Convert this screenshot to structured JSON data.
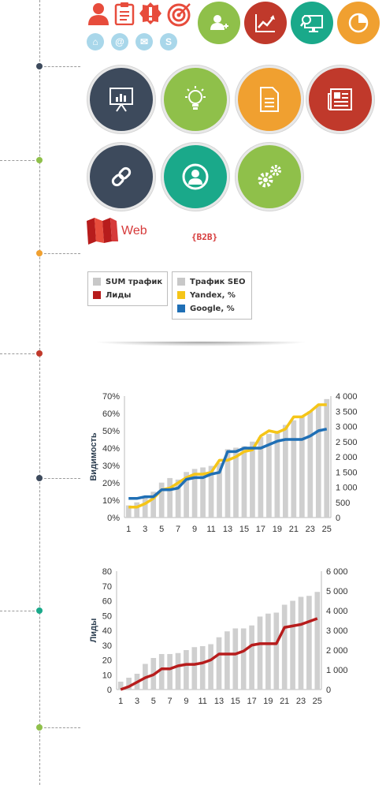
{
  "timeline": {
    "dot_colors": [
      "#3d4a5c",
      "#8fc04a",
      "#f0a030",
      "#c0392b",
      "#3d4a5c",
      "#1aa98a",
      "#8fc04a"
    ]
  },
  "top_icons": {
    "small": [
      "user-icon",
      "clipboard-icon",
      "alert-badge-icon",
      "target-icon"
    ],
    "pale": [
      "home-icon",
      "at-icon",
      "mail-icon",
      "skype-icon"
    ],
    "pale_glyphs": [
      "⌂",
      "@",
      "✉",
      "S"
    ],
    "circles": [
      {
        "name": "add-user-icon",
        "color": "#8fc04a"
      },
      {
        "name": "growth-chart-icon",
        "color": "#c0392b"
      },
      {
        "name": "monitor-search-icon",
        "color": "#1aa98a"
      },
      {
        "name": "pie-chart-icon",
        "color": "#f0a030"
      }
    ]
  },
  "big_circles": [
    {
      "name": "presentation-icon",
      "color": "#3d4a5c"
    },
    {
      "name": "lightbulb-icon",
      "color": "#8fc04a"
    },
    {
      "name": "document-icon",
      "color": "#f0a030"
    },
    {
      "name": "newspaper-icon",
      "color": "#c0392b"
    },
    {
      "name": "link-icon",
      "color": "#3d4a5c"
    },
    {
      "name": "user-profile-icon",
      "color": "#1aa98a"
    },
    {
      "name": "gears-icon",
      "color": "#8fc04a"
    }
  ],
  "brand": {
    "label": "Web",
    "tag": "{B2B}"
  },
  "legend_left": [
    {
      "label": "SUM трафик",
      "color": "#c8c8c8"
    },
    {
      "label": "Лиды",
      "color": "#b71c1c"
    }
  ],
  "legend_right": [
    {
      "label": "Трафик SEO",
      "color": "#c8c8c8"
    },
    {
      "label": "Yandex, %",
      "color": "#f5c518"
    },
    {
      "label": "Google, %",
      "color": "#1f6fb5"
    }
  ],
  "chart_data": [
    {
      "type": "bar+line",
      "ylabel": "Видимость",
      "categories": [
        1,
        2,
        3,
        4,
        5,
        6,
        7,
        8,
        9,
        10,
        11,
        12,
        13,
        14,
        15,
        16,
        17,
        18,
        19,
        20,
        21,
        22,
        23,
        24,
        25
      ],
      "x_tick_labels": [
        "1",
        "3",
        "5",
        "7",
        "9",
        "11",
        "13",
        "15",
        "17",
        "19",
        "21",
        "23",
        "25"
      ],
      "y_left_ticks": [
        "0%",
        "10%",
        "20%",
        "30%",
        "40%",
        "50%",
        "60%",
        "70%"
      ],
      "y_right_ticks": [
        "0",
        "500",
        "1 000",
        "1 500",
        "2 000",
        "2 500",
        "3 000",
        "3 500",
        "4 000"
      ],
      "ylim_left": [
        0,
        70
      ],
      "ylim_right": [
        0,
        4000
      ],
      "series": [
        {
          "name": "Трафик SEO",
          "kind": "bar",
          "axis": "right",
          "color": "#cfcfcf",
          "values": [
            400,
            500,
            700,
            850,
            1150,
            1300,
            1250,
            1500,
            1600,
            1650,
            1700,
            1800,
            2250,
            2300,
            2350,
            2500,
            2650,
            2750,
            2850,
            3050,
            3200,
            3350,
            3500,
            3700,
            3900
          ]
        },
        {
          "name": "Yandex, %",
          "kind": "line",
          "axis": "left",
          "color": "#f5c518",
          "values": [
            6,
            6,
            8,
            11,
            16,
            17,
            20,
            23,
            25,
            25,
            26,
            33,
            33,
            35,
            38,
            39,
            47,
            50,
            49,
            51,
            58,
            58,
            61,
            65,
            65
          ]
        },
        {
          "name": "Google, %",
          "kind": "line",
          "axis": "left",
          "color": "#1f6fb5",
          "values": [
            11,
            11,
            12,
            12,
            16,
            16,
            17,
            22,
            23,
            23,
            25,
            26,
            38,
            38,
            40,
            40,
            40,
            42,
            44,
            45,
            45,
            45,
            47,
            50,
            51
          ]
        }
      ]
    },
    {
      "type": "bar+line",
      "ylabel": "Лиды",
      "categories": [
        1,
        2,
        3,
        4,
        5,
        6,
        7,
        8,
        9,
        10,
        11,
        12,
        13,
        14,
        15,
        16,
        17,
        18,
        19,
        20,
        21,
        22,
        23,
        24,
        25
      ],
      "x_tick_labels": [
        "1",
        "3",
        "5",
        "7",
        "9",
        "11",
        "13",
        "15",
        "17",
        "19",
        "21",
        "23",
        "25"
      ],
      "y_left_ticks": [
        "0",
        "10",
        "20",
        "30",
        "40",
        "50",
        "60",
        "70",
        "80"
      ],
      "y_right_ticks": [
        "0",
        "1 000",
        "2 000",
        "3 000",
        "4 000",
        "5 000",
        "6 000"
      ],
      "ylim_left": [
        0,
        80
      ],
      "ylim_right": [
        0,
        6000
      ],
      "series": [
        {
          "name": "SUM трафик",
          "kind": "bar",
          "axis": "right",
          "color": "#cfcfcf",
          "values": [
            400,
            600,
            800,
            1300,
            1600,
            1800,
            1800,
            1850,
            2000,
            2150,
            2200,
            2300,
            2650,
            2950,
            3100,
            3100,
            3250,
            3700,
            3850,
            3900,
            4300,
            4500,
            4700,
            4750,
            4950
          ]
        },
        {
          "name": "Лиды",
          "kind": "line",
          "axis": "left",
          "color": "#b71c1c",
          "values": [
            0,
            2,
            5,
            8,
            10,
            14,
            14,
            16,
            17,
            17,
            18,
            20,
            24,
            24,
            24,
            26,
            30,
            31,
            31,
            31,
            42,
            43,
            44,
            46,
            48
          ]
        }
      ]
    }
  ]
}
